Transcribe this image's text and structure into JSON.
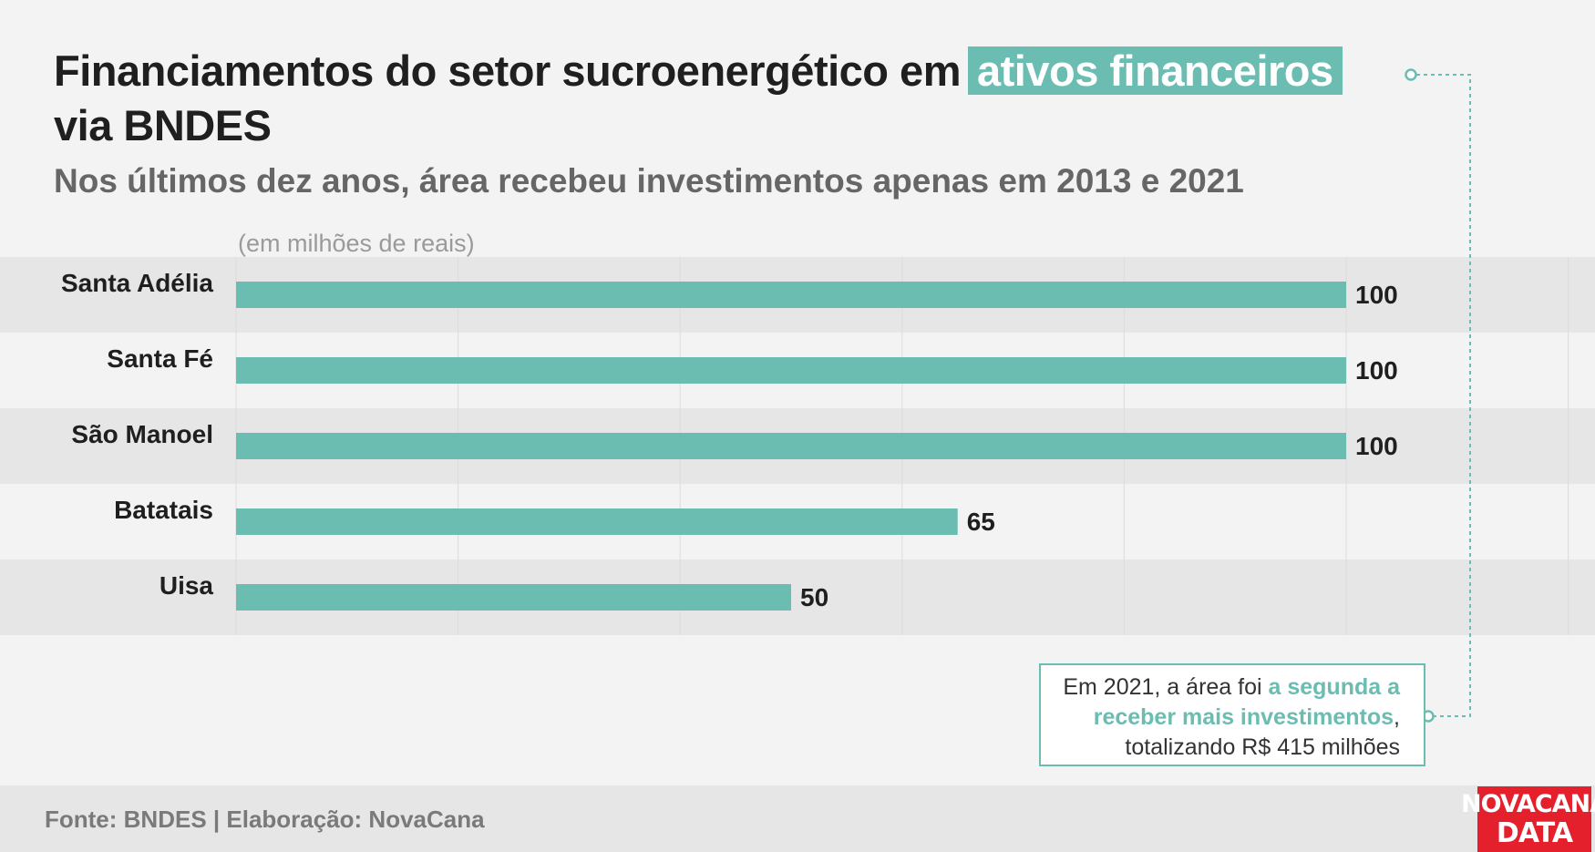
{
  "header": {
    "title_part1": "Financiamentos do setor sucroenergético em",
    "title_highlight": "ativos financeiros",
    "title_part2": "via BNDES",
    "subtitle": "Nos últimos dez anos, área recebeu investimentos apenas em 2013 e 2021"
  },
  "chart_data": {
    "type": "bar",
    "orientation": "horizontal",
    "unit_label": "(em milhões de reais)",
    "categories": [
      "Santa Adélia",
      "Santa Fé",
      "São Manoel",
      "Batatais",
      "Uisa"
    ],
    "values": [
      100,
      100,
      100,
      65,
      50
    ],
    "xlim": [
      0,
      120
    ],
    "grid": true,
    "colors": {
      "bar": "#6bbcb1"
    }
  },
  "annotation": {
    "text_before": "Em 2021, a área foi ",
    "text_emphasis": "a segunda a receber mais investimentos",
    "text_after": ", totalizando R$ 415 milhões"
  },
  "footer": {
    "source": "Fonte: BNDES | Elaboração: NovaCana"
  },
  "logo": {
    "line1": "NOVACANA",
    "line2": "DATA"
  },
  "colors": {
    "accent": "#6bbcb1",
    "background": "#f3f3f3",
    "logo_red": "#e3202c"
  }
}
